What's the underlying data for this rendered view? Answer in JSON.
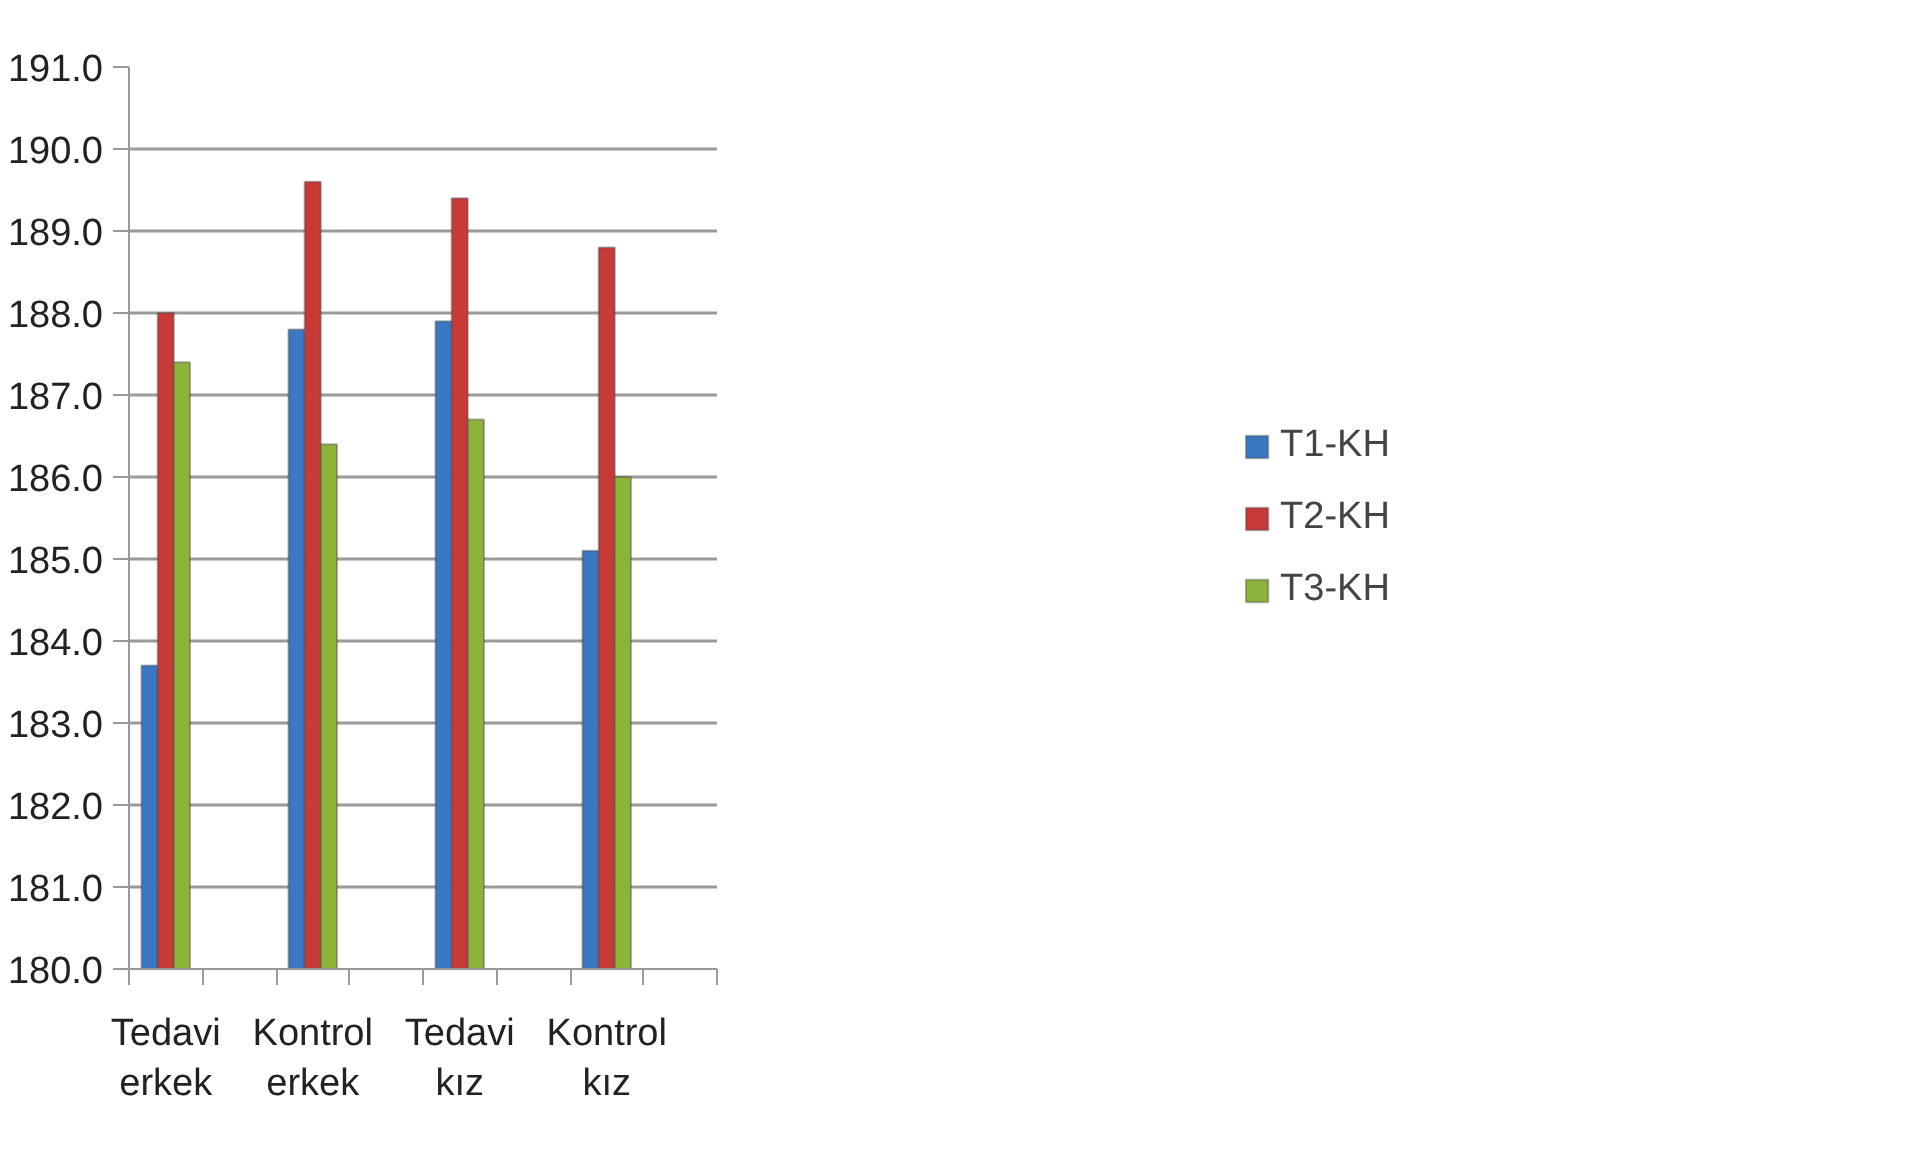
{
  "chart_data": {
    "type": "bar",
    "categories": [
      "Tedavi\nerkek",
      null,
      "Kontrol\nerkek",
      null,
      "Tedavi\nkız",
      null,
      "Kontrol\nkız",
      null
    ],
    "series": [
      {
        "name": "T1-KH",
        "color": "#3a78c4",
        "values": [
          183.7,
          null,
          187.8,
          null,
          187.9,
          null,
          185.1,
          null
        ]
      },
      {
        "name": "T2-KH",
        "color": "#c83a38",
        "values": [
          188.0,
          null,
          189.6,
          null,
          189.4,
          null,
          188.8,
          null
        ]
      },
      {
        "name": "T3-KH",
        "color": "#8cb43a",
        "values": [
          187.4,
          null,
          186.4,
          null,
          186.7,
          null,
          186.0,
          null
        ]
      }
    ],
    "ylim": [
      180,
      191
    ],
    "yticks": [
      {
        "value": 180,
        "label": "180.0"
      },
      {
        "value": 181,
        "label": "181.0"
      },
      {
        "value": 182,
        "label": "182.0"
      },
      {
        "value": 183,
        "label": "183.0"
      },
      {
        "value": 184,
        "label": "184.0"
      },
      {
        "value": 185,
        "label": "185.0"
      },
      {
        "value": 186,
        "label": "186.0"
      },
      {
        "value": 187,
        "label": "187.0"
      },
      {
        "value": 188,
        "label": "188.0"
      },
      {
        "value": 189,
        "label": "189.0"
      },
      {
        "value": 190,
        "label": "190.0"
      },
      {
        "value": 191,
        "label": "191.0"
      }
    ],
    "grid": "y",
    "legend": "right"
  }
}
